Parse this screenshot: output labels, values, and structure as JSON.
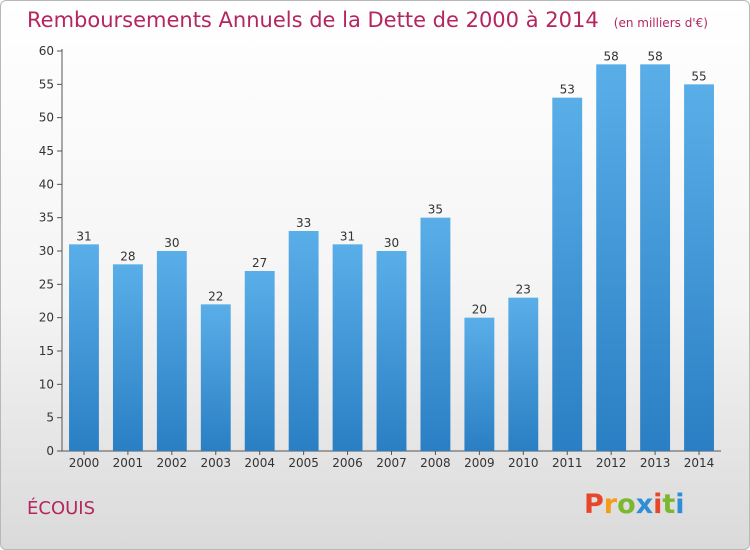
{
  "chart_data": {
    "type": "bar",
    "title": "Remboursements Annuels de la Dette de 2000 à 2014",
    "subtitle": "(en milliers d'€)",
    "categories": [
      "2000",
      "2001",
      "2002",
      "2003",
      "2004",
      "2005",
      "2006",
      "2007",
      "2008",
      "2009",
      "2010",
      "2011",
      "2012",
      "2013",
      "2014"
    ],
    "values": [
      31,
      28,
      30,
      22,
      27,
      33,
      31,
      30,
      35,
      20,
      23,
      53,
      58,
      58,
      55
    ],
    "ylim": [
      0,
      60
    ],
    "yticks": [
      0,
      5,
      10,
      15,
      20,
      25,
      30,
      35,
      40,
      45,
      50,
      55,
      60
    ],
    "grid": false,
    "bar_color": "#3d92d6",
    "data_labels": true
  },
  "footer": {
    "commune": "ÉCOUIS",
    "brand": "Proxiti"
  },
  "colors": {
    "accent": "#b5255f",
    "brand_letters": [
      "#e8462a",
      "#f49b1a",
      "#7cb82f",
      "#2f8fd6",
      "#e8462a",
      "#7cb82f",
      "#2f8fd6"
    ]
  }
}
